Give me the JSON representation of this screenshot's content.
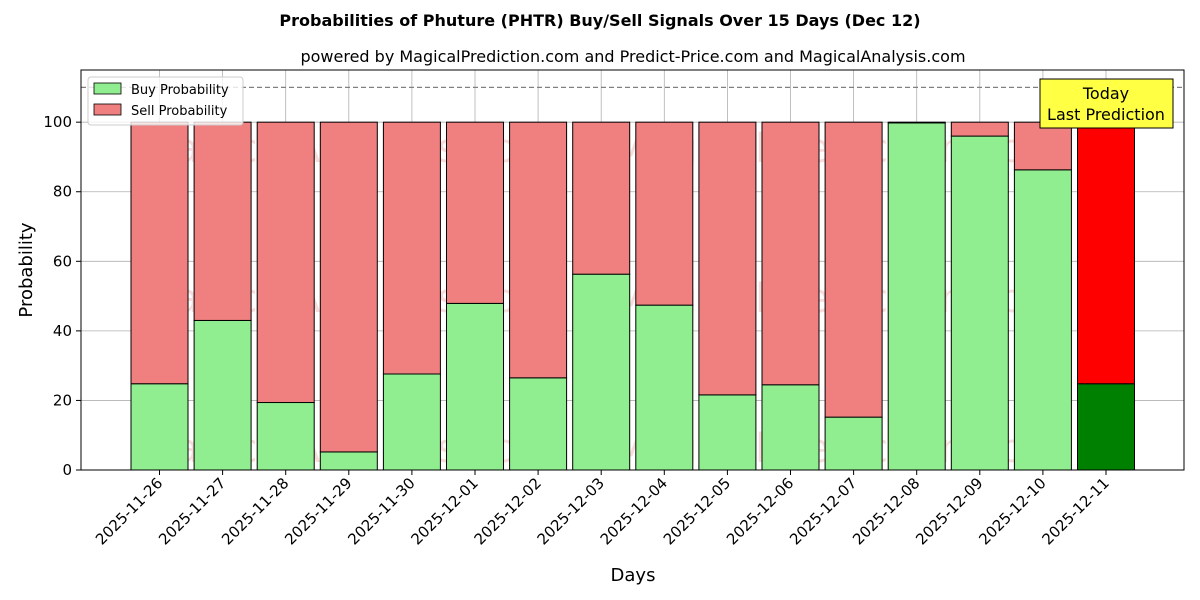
{
  "chart_data": {
    "type": "bar",
    "stacked": true,
    "title": "Probabilities of Phuture (PHTR) Buy/Sell Signals Over 15 Days (Dec 12)",
    "subtitle": "powered by MagicalPrediction.com and Predict-Price.com and MagicalAnalysis.com",
    "xlabel": "Days",
    "ylabel": "Probability",
    "ylim": [
      0,
      115
    ],
    "yticks": [
      0,
      20,
      40,
      60,
      80,
      100
    ],
    "grid": true,
    "legend_position": "top-left",
    "reference_line": 110,
    "categories": [
      "2025-11-26",
      "2025-11-27",
      "2025-11-28",
      "2025-11-29",
      "2025-11-30",
      "2025-12-01",
      "2025-12-02",
      "2025-12-03",
      "2025-12-04",
      "2025-12-05",
      "2025-12-06",
      "2025-12-07",
      "2025-12-08",
      "2025-12-09",
      "2025-12-10",
      "2025-12-11"
    ],
    "series": [
      {
        "name": "Buy Probability",
        "color": "#90ee90",
        "values": [
          24.8,
          43.0,
          19.4,
          5.2,
          27.6,
          47.9,
          26.5,
          56.3,
          47.4,
          21.6,
          24.5,
          15.2,
          99.8,
          96.0,
          86.3,
          24.8
        ]
      },
      {
        "name": "Sell Probability",
        "color": "#f08080",
        "values": [
          75.2,
          57.0,
          80.6,
          94.8,
          72.4,
          52.1,
          73.5,
          43.7,
          52.6,
          78.4,
          75.5,
          84.8,
          0.2,
          4.0,
          13.7,
          75.2
        ]
      }
    ],
    "highlight": {
      "index": 15,
      "buy_color": "#008000",
      "sell_color": "#ff0000"
    },
    "annotation": {
      "lines": [
        "Today",
        "Last Prediction"
      ],
      "background": "#ffff44"
    },
    "watermarks": [
      "MagicalAnalysis.com",
      "MagicalPrediction.com"
    ]
  }
}
